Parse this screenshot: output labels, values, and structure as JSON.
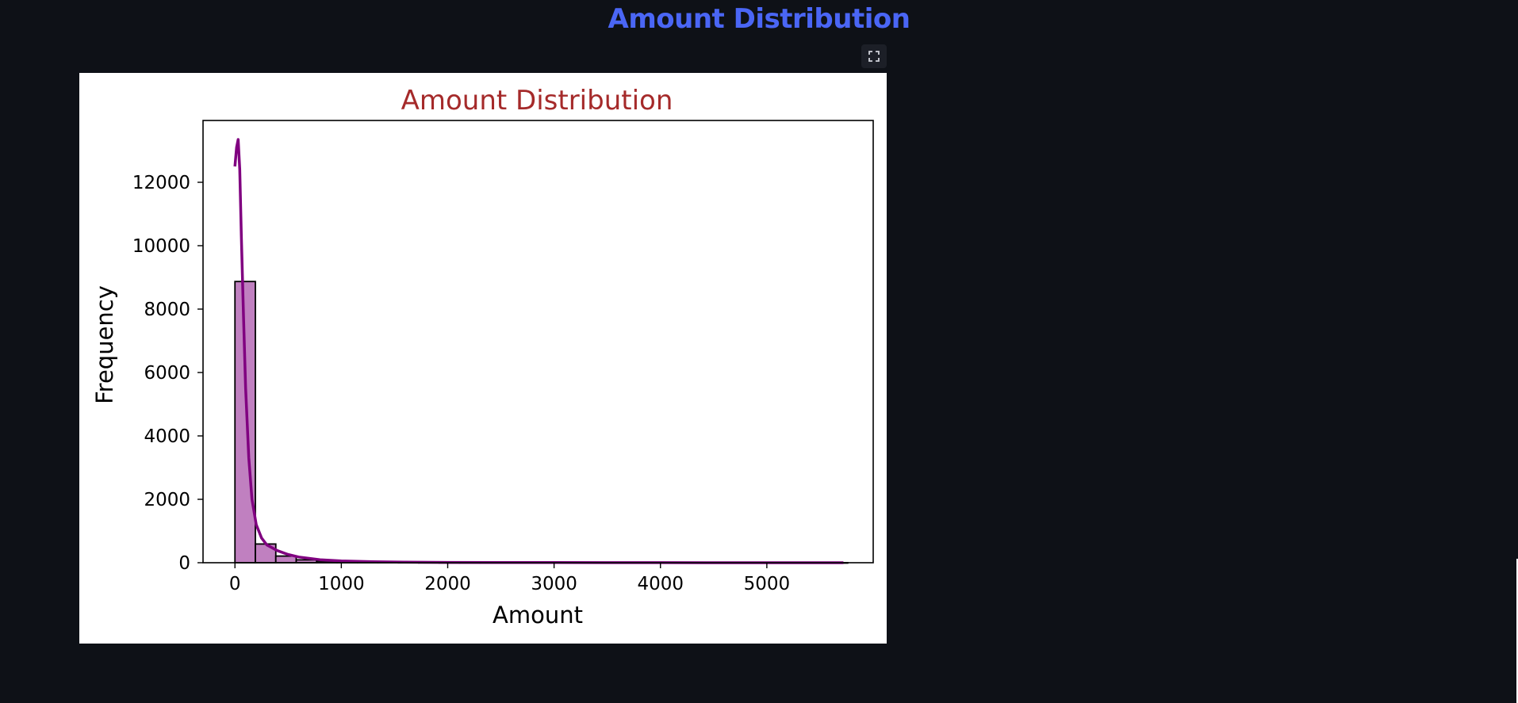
{
  "page": {
    "heading": "Amount Distribution"
  },
  "toolbar": {
    "expand_icon": "fullscreen-expand-icon"
  },
  "colors": {
    "background": "#0e1117",
    "heading": "#4a66f5",
    "chart_title": "#a52a2a",
    "bar_fill": "#c080c0",
    "bar_edge": "#000000",
    "kde_line": "#800080"
  },
  "chart_data": {
    "type": "bar",
    "title": "Amount Distribution",
    "xlabel": "Amount",
    "ylabel": "Frequency",
    "xlim": [
      -300,
      6000
    ],
    "ylim": [
      0,
      13950
    ],
    "xticks": [
      0,
      1000,
      2000,
      3000,
      4000,
      5000
    ],
    "yticks": [
      0,
      2000,
      4000,
      6000,
      8000,
      10000,
      12000
    ],
    "bin_width": 192,
    "bins": [
      {
        "x0": 0,
        "x1": 192,
        "count": 8870
      },
      {
        "x0": 192,
        "x1": 384,
        "count": 590
      },
      {
        "x0": 384,
        "x1": 576,
        "count": 210
      },
      {
        "x0": 576,
        "x1": 768,
        "count": 90
      },
      {
        "x0": 768,
        "x1": 960,
        "count": 50
      },
      {
        "x0": 960,
        "x1": 1152,
        "count": 35
      },
      {
        "x0": 1152,
        "x1": 1344,
        "count": 20
      },
      {
        "x0": 1344,
        "x1": 1536,
        "count": 12
      },
      {
        "x0": 1536,
        "x1": 1728,
        "count": 8
      },
      {
        "x0": 1728,
        "x1": 1920,
        "count": 6
      },
      {
        "x0": 1920,
        "x1": 2112,
        "count": 4
      },
      {
        "x0": 2112,
        "x1": 2304,
        "count": 3
      },
      {
        "x0": 2304,
        "x1": 2496,
        "count": 2
      },
      {
        "x0": 2496,
        "x1": 2688,
        "count": 2
      },
      {
        "x0": 2688,
        "x1": 2880,
        "count": 1
      },
      {
        "x0": 2880,
        "x1": 3072,
        "count": 1
      },
      {
        "x0": 3072,
        "x1": 3264,
        "count": 1
      },
      {
        "x0": 3264,
        "x1": 3456,
        "count": 1
      },
      {
        "x0": 3456,
        "x1": 3648,
        "count": 1
      },
      {
        "x0": 3648,
        "x1": 3840,
        "count": 1
      },
      {
        "x0": 3840,
        "x1": 4032,
        "count": 0
      },
      {
        "x0": 4032,
        "x1": 4224,
        "count": 1
      },
      {
        "x0": 4224,
        "x1": 4416,
        "count": 0
      },
      {
        "x0": 4416,
        "x1": 4608,
        "count": 1
      },
      {
        "x0": 4608,
        "x1": 4800,
        "count": 0
      },
      {
        "x0": 4800,
        "x1": 4992,
        "count": 0
      },
      {
        "x0": 4992,
        "x1": 5184,
        "count": 1
      },
      {
        "x0": 5184,
        "x1": 5376,
        "count": 0
      },
      {
        "x0": 5376,
        "x1": 5568,
        "count": 0
      },
      {
        "x0": 5568,
        "x1": 5760,
        "count": 1
      }
    ],
    "kde": {
      "x": [
        0,
        15,
        30,
        45,
        60,
        80,
        100,
        130,
        160,
        200,
        250,
        300,
        400,
        500,
        600,
        800,
        1000,
        1300,
        1600,
        2000,
        2500,
        3000,
        3500,
        4000,
        4500,
        5000,
        5500,
        5720
      ],
      "y": [
        12500,
        13100,
        13350,
        12400,
        10300,
        7800,
        5500,
        3300,
        2000,
        1200,
        780,
        560,
        380,
        260,
        180,
        95,
        55,
        30,
        18,
        10,
        6,
        4,
        3,
        2,
        1,
        1,
        1,
        0
      ]
    },
    "grid": false
  }
}
